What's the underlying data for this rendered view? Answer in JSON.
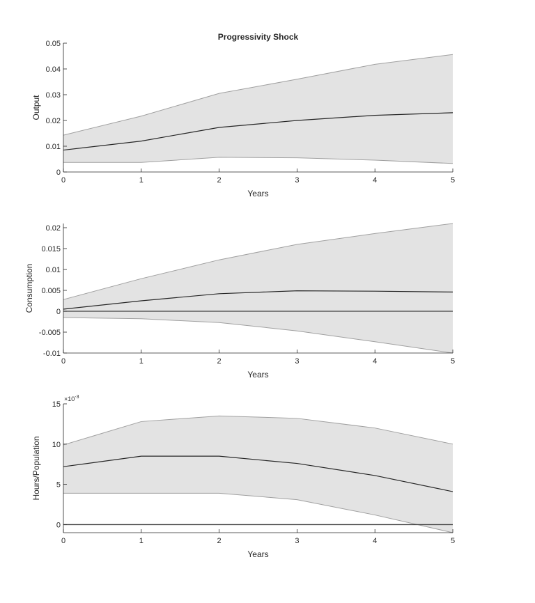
{
  "chart_data": [
    {
      "type": "area",
      "title": "Progressivity Shock",
      "xlabel": "Years",
      "ylabel": "Output",
      "x": [
        0,
        1,
        2,
        3,
        4,
        5
      ],
      "xlim": [
        0,
        5
      ],
      "ylim": [
        0,
        0.05
      ],
      "xticks": [
        "0",
        "1",
        "2",
        "3",
        "4",
        "5"
      ],
      "yticks": [
        0,
        0.01,
        0.02,
        0.03,
        0.04,
        0.05
      ],
      "ytick_labels": [
        "0",
        "0.01",
        "0.02",
        "0.03",
        "0.04",
        "0.05"
      ],
      "multiplier": "",
      "zero_line": false,
      "series": [
        {
          "role": "median",
          "values": [
            0.0085,
            0.012,
            0.0173,
            0.02,
            0.022,
            0.023
          ]
        },
        {
          "role": "upper",
          "values": [
            0.0143,
            0.0217,
            0.0305,
            0.036,
            0.0418,
            0.0456
          ]
        },
        {
          "role": "lower",
          "values": [
            0.0037,
            0.0037,
            0.0057,
            0.0055,
            0.0046,
            0.0033
          ]
        }
      ]
    },
    {
      "type": "area",
      "title": "",
      "xlabel": "Years",
      "ylabel": "Consumption",
      "x": [
        0,
        1,
        2,
        3,
        4,
        5
      ],
      "xlim": [
        0,
        5
      ],
      "ylim": [
        -0.01,
        0.021
      ],
      "xticks": [
        "0",
        "1",
        "2",
        "3",
        "4",
        "5"
      ],
      "yticks": [
        -0.01,
        -0.005,
        0,
        0.005,
        0.01,
        0.015,
        0.02
      ],
      "ytick_labels": [
        "-0.01",
        "-0.005",
        "0",
        "0.005",
        "0.01",
        "0.015",
        "0.02"
      ],
      "multiplier": "",
      "zero_line": true,
      "series": [
        {
          "role": "median",
          "values": [
            0.0005,
            0.0025,
            0.0042,
            0.0049,
            0.0048,
            0.0046
          ]
        },
        {
          "role": "upper",
          "values": [
            0.0028,
            0.0078,
            0.0123,
            0.016,
            0.0186,
            0.021
          ]
        },
        {
          "role": "lower",
          "values": [
            -0.0015,
            -0.0018,
            -0.0027,
            -0.0047,
            -0.0073,
            -0.01
          ]
        }
      ]
    },
    {
      "type": "area",
      "title": "",
      "xlabel": "Years",
      "ylabel": "Hours/Population",
      "x": [
        0,
        1,
        2,
        3,
        4,
        5
      ],
      "xlim": [
        0,
        5
      ],
      "ylim": [
        -1,
        15
      ],
      "xticks": [
        "0",
        "1",
        "2",
        "3",
        "4",
        "5"
      ],
      "yticks": [
        0,
        5,
        10,
        15
      ],
      "ytick_labels": [
        "0",
        "5",
        "10",
        "15"
      ],
      "multiplier": "×10",
      "multiplier_exp": "-3",
      "zero_line": true,
      "series": [
        {
          "role": "median",
          "values": [
            7.2,
            8.5,
            8.5,
            7.6,
            6.1,
            4.1
          ]
        },
        {
          "role": "upper",
          "values": [
            9.9,
            12.8,
            13.5,
            13.2,
            12.0,
            10.0
          ]
        },
        {
          "role": "lower",
          "values": [
            3.9,
            3.9,
            3.9,
            3.1,
            1.2,
            -1.0
          ]
        }
      ]
    }
  ],
  "colors": {
    "band": "#e3e3e3",
    "band_edge": "#a0a0a0",
    "median": "#262626",
    "axis": "#262626"
  }
}
